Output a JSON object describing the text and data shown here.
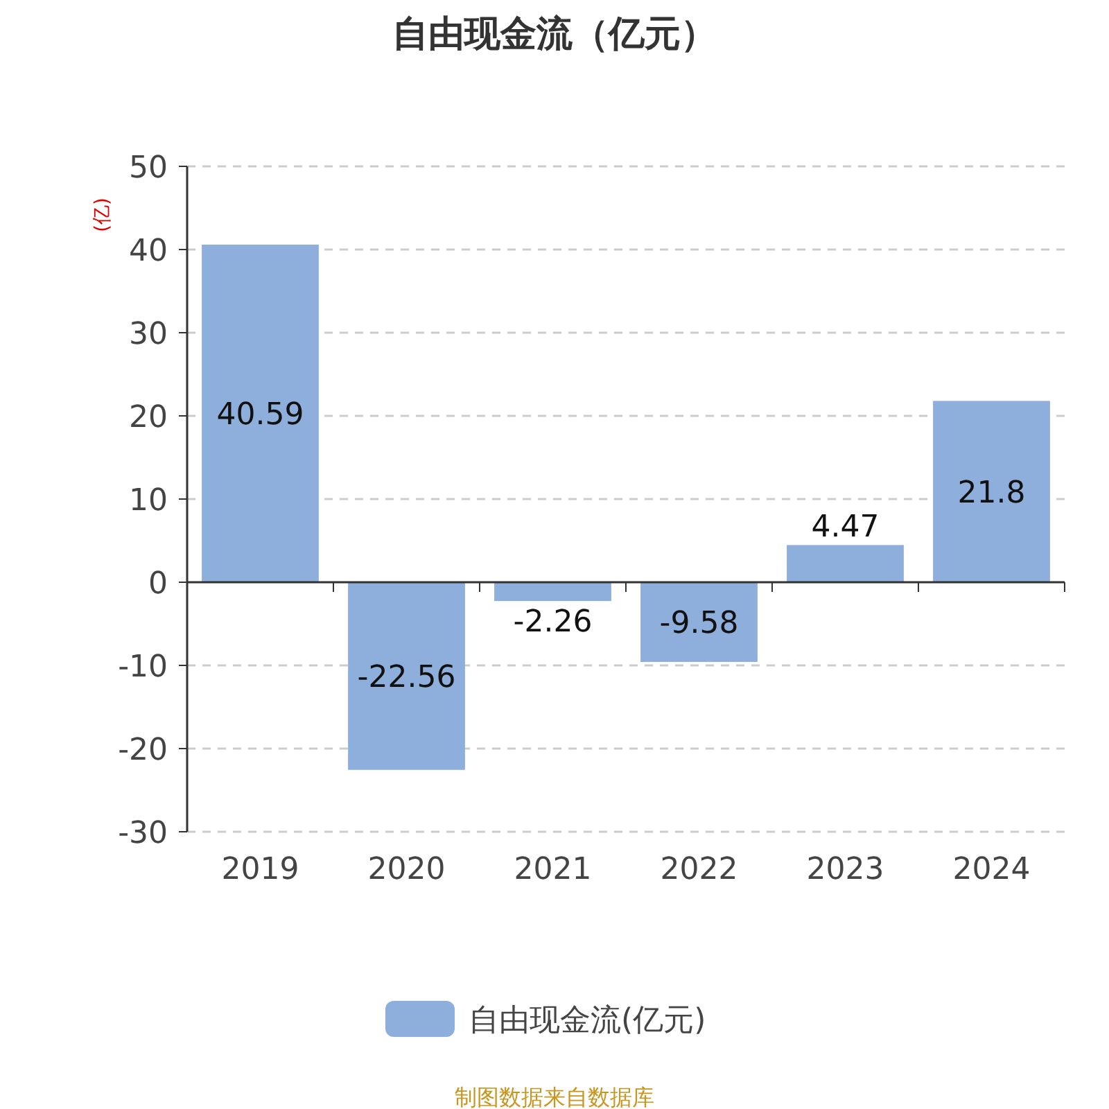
{
  "chart_data": {
    "type": "bar",
    "title": "自由现金流（亿元）",
    "ylabel": "(亿)",
    "categories": [
      "2019",
      "2020",
      "2021",
      "2022",
      "2023",
      "2024"
    ],
    "series": [
      {
        "name": "自由现金流(亿元)",
        "color": "#8eaedb",
        "values": [
          40.59,
          -22.56,
          -2.26,
          -9.58,
          4.47,
          21.8
        ]
      }
    ],
    "ylim": [
      -30,
      50
    ],
    "yticks": [
      -30,
      -20,
      -10,
      0,
      10,
      20,
      30,
      40,
      50
    ],
    "grid": "y",
    "legend": "bottom",
    "data_labels": true,
    "annotations": [
      "制图数据来自数据库"
    ]
  }
}
